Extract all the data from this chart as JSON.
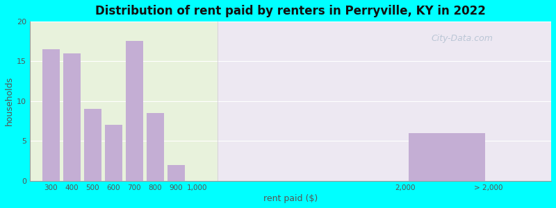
{
  "title": "Distribution of rent paid by renters in Perryville, KY in 2022",
  "xlabel": "rent paid ($)",
  "ylabel": "households",
  "bar_color": "#c4aed4",
  "background_color": "#00ffff",
  "bg_left_color": "#e8f2dc",
  "bg_right_color": "#ede8f2",
  "values": [
    16.5,
    16.0,
    9.0,
    7.0,
    17.5,
    8.5,
    2.0,
    6.0
  ],
  "bar_centers": [
    300,
    400,
    500,
    600,
    700,
    800,
    900,
    2200
  ],
  "bar_widths": [
    90,
    90,
    90,
    90,
    90,
    90,
    90,
    400
  ],
  "xtick_positions": [
    300,
    400,
    500,
    600,
    700,
    800,
    900,
    1000,
    2000,
    2400
  ],
  "xtick_labels": [
    "300",
    "400",
    "500",
    "600",
    "700",
    "800",
    "900",
    "1,000",
    "2,000",
    "> 2,000"
  ],
  "xlim": [
    200,
    2700
  ],
  "ylim": [
    0,
    20
  ],
  "yticks": [
    0,
    5,
    10,
    15,
    20
  ],
  "watermark": "City-Data.com",
  "divider_x": 1100
}
